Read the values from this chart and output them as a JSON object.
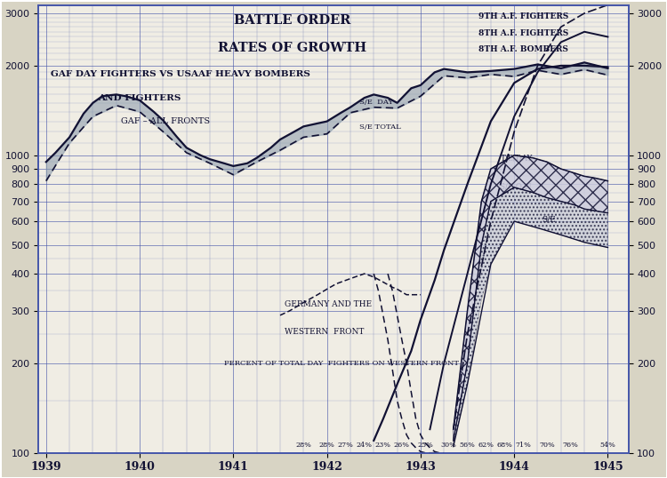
{
  "title1": "BATTLE ORDER",
  "title2": "RATES OF GROWTH",
  "subtitle1": "GAF DAY FIGHTERS VS USAAF HEAVY BOMBERS",
  "subtitle2": "AND FIGHTERS",
  "outer_bg": "#d8d4c4",
  "inner_bg": "#f0ede4",
  "grid_color": "#4455aa",
  "text_color": "#111133",
  "line_color": "#111133",
  "gaf_all_x": [
    1939.0,
    1939.1,
    1939.25,
    1939.4,
    1939.5,
    1939.6,
    1939.75,
    1939.85,
    1940.0,
    1940.15,
    1940.25,
    1940.4,
    1940.5,
    1940.65,
    1940.75,
    1940.9,
    1941.0,
    1941.15,
    1941.25,
    1941.4,
    1941.5,
    1941.65,
    1941.75,
    1941.9,
    1942.0,
    1942.15,
    1942.25,
    1942.4,
    1942.5,
    1942.65,
    1942.75,
    1942.9,
    1943.0,
    1943.15,
    1943.25,
    1943.5,
    1943.75,
    1944.0,
    1944.25,
    1944.5,
    1944.75,
    1945.0
  ],
  "gaf_all_y": [
    950,
    1020,
    1150,
    1380,
    1500,
    1580,
    1600,
    1580,
    1530,
    1400,
    1310,
    1150,
    1060,
    1000,
    970,
    940,
    920,
    940,
    980,
    1060,
    1130,
    1200,
    1250,
    1280,
    1300,
    1390,
    1450,
    1560,
    1600,
    1560,
    1500,
    1680,
    1720,
    1900,
    1950,
    1900,
    1920,
    1950,
    2020,
    1960,
    2050,
    1960
  ],
  "gaf_se_x": [
    1939.0,
    1939.25,
    1939.5,
    1939.75,
    1940.0,
    1940.25,
    1940.5,
    1940.75,
    1941.0,
    1941.25,
    1941.5,
    1941.75,
    1942.0,
    1942.25,
    1942.5,
    1942.75,
    1943.0,
    1943.25,
    1943.5,
    1943.75,
    1944.0,
    1944.25,
    1944.5,
    1944.75,
    1945.0
  ],
  "gaf_se_y": [
    820,
    1100,
    1350,
    1470,
    1400,
    1200,
    1020,
    940,
    860,
    950,
    1040,
    1150,
    1180,
    1390,
    1450,
    1440,
    1580,
    1850,
    1820,
    1870,
    1840,
    1930,
    1870,
    1940,
    1860
  ],
  "gaf_west_x": [
    1941.5,
    1941.6,
    1941.75,
    1941.9,
    1942.0,
    1942.1,
    1942.2,
    1942.3,
    1942.4,
    1942.5,
    1942.6,
    1942.7,
    1942.75,
    1942.85,
    1942.9,
    1943.0
  ],
  "gaf_west_y": [
    290,
    300,
    320,
    340,
    355,
    370,
    380,
    390,
    400,
    390,
    375,
    360,
    355,
    340,
    340,
    340
  ],
  "eighth_bomb_x": [
    1942.5,
    1942.6,
    1942.75,
    1942.9,
    1943.0,
    1943.15,
    1943.25,
    1943.5,
    1943.75,
    1944.0,
    1944.25,
    1944.5,
    1944.75,
    1945.0
  ],
  "eighth_bomb_y": [
    110,
    130,
    170,
    220,
    280,
    380,
    480,
    800,
    1300,
    1750,
    1950,
    2000,
    2000,
    1980
  ],
  "eighth_ftr_x": [
    1943.1,
    1943.25,
    1943.5,
    1943.75,
    1944.0,
    1944.25,
    1944.5,
    1944.75,
    1945.0
  ],
  "eighth_ftr_y": [
    120,
    200,
    400,
    800,
    1350,
    1900,
    2400,
    2600,
    2500
  ],
  "ninth_ftr_x": [
    1943.35,
    1943.5,
    1943.75,
    1944.0,
    1944.25,
    1944.5,
    1944.75,
    1945.0,
    1945.15
  ],
  "ninth_ftr_y": [
    120,
    250,
    600,
    1200,
    2000,
    2700,
    3000,
    3200,
    3350
  ],
  "te_day_x": [
    1943.35,
    1943.5,
    1943.65,
    1943.75,
    1944.0,
    1944.2,
    1944.35,
    1944.5,
    1944.65,
    1944.75,
    1944.85,
    1945.0
  ],
  "te_day_y": [
    120,
    300,
    700,
    900,
    1000,
    980,
    950,
    900,
    870,
    850,
    840,
    820
  ],
  "se_on_x": [
    1943.35,
    1943.5,
    1943.65,
    1943.75,
    1944.0,
    1944.2,
    1944.35,
    1944.5,
    1944.65,
    1944.75,
    1945.0
  ],
  "se_on_y": [
    110,
    200,
    500,
    700,
    780,
    750,
    720,
    700,
    680,
    660,
    640
  ],
  "se_x": [
    1943.35,
    1943.5,
    1943.75,
    1944.0,
    1944.25,
    1944.5,
    1944.75,
    1945.0
  ],
  "se_y": [
    105,
    170,
    430,
    600,
    570,
    540,
    510,
    490
  ],
  "dashed_line1_x": [
    1942.5,
    1942.55,
    1942.6,
    1942.65,
    1942.7,
    1942.75,
    1942.8,
    1942.85,
    1942.9,
    1942.95,
    1943.0,
    1943.05,
    1943.1,
    1943.15,
    1943.2
  ],
  "dashed_line1_y": [
    400,
    350,
    290,
    240,
    190,
    150,
    130,
    115,
    108,
    104,
    101,
    100,
    100,
    100,
    100
  ],
  "dashed_line2_x": [
    1942.65,
    1942.7,
    1942.75,
    1942.8,
    1942.85,
    1942.9,
    1942.95,
    1943.0,
    1943.05,
    1943.1,
    1943.15,
    1943.2,
    1943.25
  ],
  "dashed_line2_y": [
    400,
    350,
    290,
    240,
    200,
    160,
    130,
    115,
    108,
    104,
    101,
    100,
    100
  ],
  "percent_positions": [
    [
      1941.75,
      "28%"
    ],
    [
      1942.0,
      "28%"
    ],
    [
      1942.2,
      "27%"
    ],
    [
      1942.4,
      "24%"
    ],
    [
      1942.6,
      "23%"
    ],
    [
      1942.8,
      "26%"
    ],
    [
      1943.05,
      "25%"
    ],
    [
      1943.3,
      "30%"
    ],
    [
      1943.5,
      "56%"
    ],
    [
      1943.7,
      "62%"
    ],
    [
      1943.9,
      "68%"
    ],
    [
      1944.1,
      "71%"
    ],
    [
      1944.35,
      "70%"
    ],
    [
      1944.6,
      "76%"
    ],
    [
      1945.0,
      "54%"
    ]
  ]
}
